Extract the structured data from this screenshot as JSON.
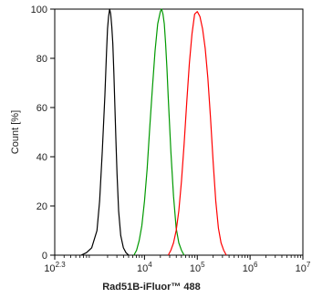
{
  "chart_data": {
    "type": "line",
    "title": "",
    "xlabel": "Rad51B-iFluor™ 488",
    "ylabel": "Count [%]",
    "x_scale": "log",
    "xlim": [
      199.5,
      10000000
    ],
    "ylim": [
      0,
      100
    ],
    "x_ticks": [
      {
        "base": "10",
        "exp": "2.3",
        "value": 199.5
      },
      {
        "base": "10",
        "exp": "4",
        "value": 10000
      },
      {
        "base": "10",
        "exp": "5",
        "value": 100000
      },
      {
        "base": "10",
        "exp": "6",
        "value": 1000000
      },
      {
        "base": "10",
        "exp": "7",
        "value": 10000000
      }
    ],
    "y_ticks": [
      {
        "label": "0",
        "value": 0
      },
      {
        "label": "20",
        "value": 20
      },
      {
        "label": "40",
        "value": 40
      },
      {
        "label": "60",
        "value": 60
      },
      {
        "label": "80",
        "value": 80
      },
      {
        "label": "100",
        "value": 100
      }
    ],
    "grid": false,
    "series": [
      {
        "color": "#000000",
        "x": [
          631,
          794,
          1000,
          1259,
          1413,
          1585,
          1778,
          1905,
          1995,
          2089,
          2188,
          2291,
          2399,
          2512,
          2630,
          2754,
          2884,
          3020,
          3236,
          3548,
          3981,
          4467,
          5012
        ],
        "y": [
          0,
          1,
          3,
          10,
          22,
          42,
          65,
          82,
          92,
          97,
          100,
          98,
          93,
          86,
          74,
          60,
          46,
          33,
          18,
          8,
          3,
          1,
          0
        ]
      },
      {
        "color": "#009900",
        "x": [
          6310,
          7079,
          7943,
          8913,
          10000,
          11220,
          12589,
          14125,
          15849,
          17783,
          19953,
          21135,
          22387,
          23714,
          25119,
          26607,
          28184,
          31623,
          35481,
          39811,
          44668,
          50119,
          56234
        ],
        "y": [
          0,
          2,
          6,
          12,
          22,
          35,
          52,
          68,
          83,
          94,
          99,
          100,
          98,
          94,
          86,
          76,
          64,
          42,
          24,
          11,
          5,
          2,
          0
        ]
      },
      {
        "color": "#ff0000",
        "x": [
          28184,
          31623,
          35481,
          39811,
          44668,
          50119,
          56234,
          63096,
          70795,
          79433,
          89125,
          100000,
          112202,
          125893,
          141254,
          158489,
          177828,
          199526,
          223872,
          251189,
          281838,
          316228,
          354813
        ],
        "y": [
          0,
          2,
          5,
          10,
          18,
          30,
          45,
          62,
          78,
          90,
          98,
          99,
          97,
          92,
          84,
          72,
          56,
          38,
          22,
          11,
          5,
          2,
          0
        ]
      }
    ]
  }
}
